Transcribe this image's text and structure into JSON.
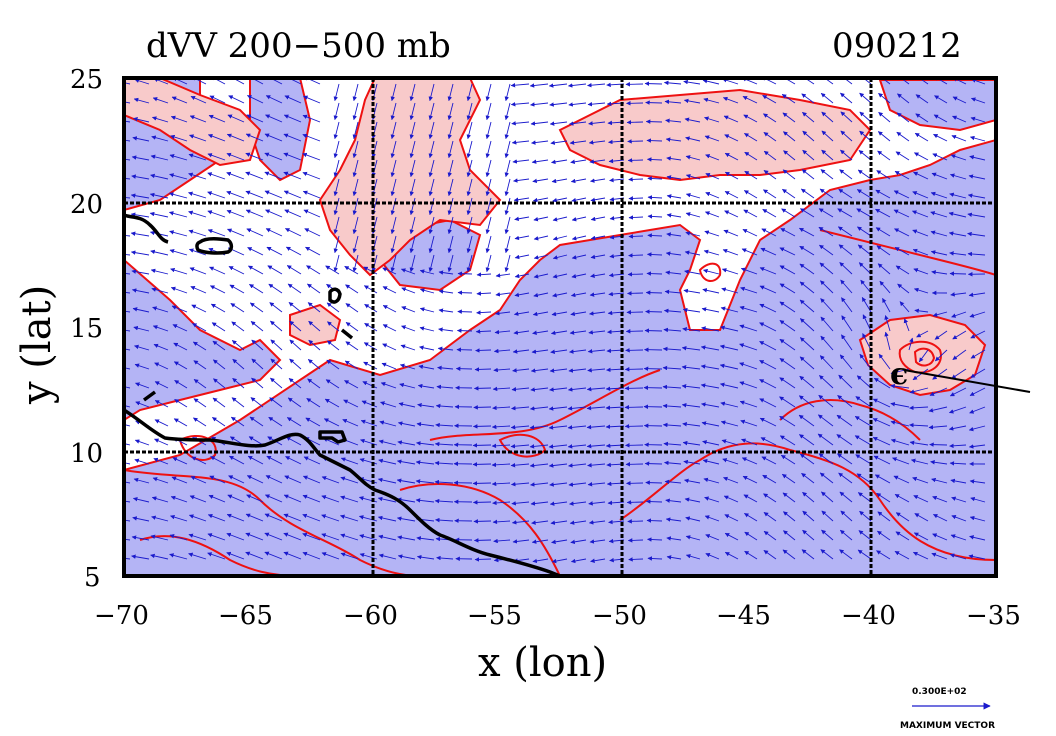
{
  "title": "dVV 200−500 mb",
  "date_label": "090212",
  "xlabel": "x (lon)",
  "ylabel": "y (lat)",
  "colors": {
    "negative_fill": "#b4b4f5",
    "positive_fill": "#f8caca",
    "contour": "#ee1111",
    "vector": "#1a1acc",
    "coast": "#000000"
  },
  "legend": {
    "value": "0.300E+02",
    "caption": "MAXIMUM VECTOR"
  },
  "chart_data": {
    "type": "heatmap",
    "variable": "dVV 200−500 mb",
    "xlim": [
      -70,
      -35
    ],
    "ylim": [
      5,
      25
    ],
    "x_ticks": [
      "−70",
      "−65",
      "−60",
      "−55",
      "−50",
      "−45",
      "−40",
      "−35"
    ],
    "y_ticks": [
      "5",
      "10",
      "15",
      "20",
      "25"
    ],
    "grid": true,
    "grid_lon": [
      -60,
      -50,
      -40
    ],
    "grid_lat": [
      10,
      20
    ],
    "overlay": "wind vectors",
    "storm_center": {
      "lon": -38.6,
      "lat": 13.4
    }
  }
}
